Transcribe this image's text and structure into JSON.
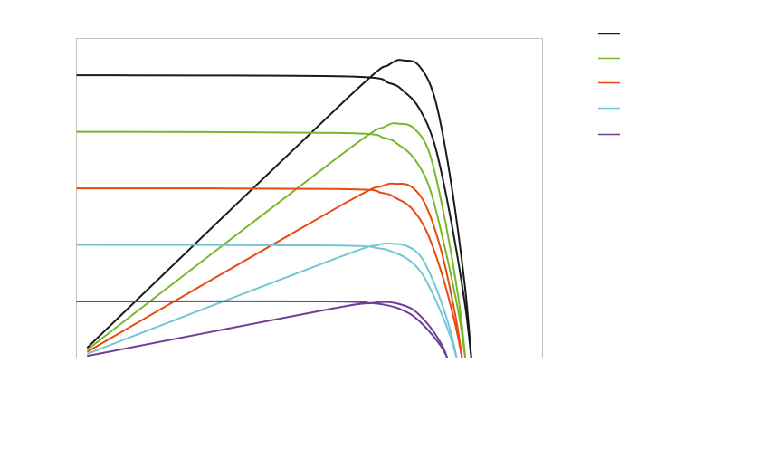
{
  "chart_data": {
    "type": "line",
    "title": "",
    "xlabel": "",
    "ylabel": "",
    "xlim": [
      0,
      0.7
    ],
    "ylim": [
      0,
      5.65
    ],
    "grid": false,
    "axis_tick_labels": false,
    "legend": {
      "placement": "right",
      "entries_text_visible": false
    },
    "series": [
      {
        "color": "#1a1a1a",
        "current": [
          [
            0,
            5.0
          ],
          [
            0.402,
            4.98
          ],
          [
            0.47,
            4.86
          ],
          [
            0.493,
            4.7
          ],
          [
            0.515,
            4.41
          ],
          [
            0.538,
            3.77
          ],
          [
            0.561,
            2.53
          ],
          [
            0.583,
            0.99
          ],
          [
            0.593,
            0
          ]
        ],
        "power": [
          [
            0.016,
            0.18
          ],
          [
            0.402,
            4.54
          ],
          [
            0.47,
            5.19
          ],
          [
            0.493,
            5.26
          ],
          [
            0.515,
            5.16
          ],
          [
            0.538,
            4.6
          ],
          [
            0.561,
            3.22
          ],
          [
            0.583,
            1.31
          ],
          [
            0.593,
            0
          ]
        ]
      },
      {
        "color": "#77b82a",
        "current": [
          [
            0,
            4.0
          ],
          [
            0.396,
            3.98
          ],
          [
            0.463,
            3.89
          ],
          [
            0.485,
            3.76
          ],
          [
            0.507,
            3.53
          ],
          [
            0.53,
            3.02
          ],
          [
            0.552,
            2.02
          ],
          [
            0.574,
            0.79
          ],
          [
            0.584,
            0
          ]
        ],
        "power": [
          [
            0.016,
            0.145
          ],
          [
            0.396,
            3.58
          ],
          [
            0.463,
            4.09
          ],
          [
            0.485,
            4.14
          ],
          [
            0.507,
            4.06
          ],
          [
            0.53,
            3.63
          ],
          [
            0.552,
            2.53
          ],
          [
            0.574,
            1.03
          ],
          [
            0.584,
            0
          ]
        ]
      },
      {
        "color": "#e8490f",
        "current": [
          [
            0,
            3.0
          ],
          [
            0.393,
            2.99
          ],
          [
            0.459,
            2.92
          ],
          [
            0.481,
            2.82
          ],
          [
            0.503,
            2.65
          ],
          [
            0.525,
            2.26
          ],
          [
            0.548,
            1.52
          ],
          [
            0.569,
            0.59
          ],
          [
            0.579,
            0
          ]
        ],
        "power": [
          [
            0.016,
            0.109
          ],
          [
            0.393,
            2.67
          ],
          [
            0.459,
            3.04
          ],
          [
            0.481,
            3.08
          ],
          [
            0.503,
            3.03
          ],
          [
            0.525,
            2.69
          ],
          [
            0.548,
            1.89
          ],
          [
            0.569,
            0.76
          ],
          [
            0.579,
            0
          ]
        ]
      },
      {
        "color": "#74c6d4",
        "current": [
          [
            0,
            2.0
          ],
          [
            0.387,
            1.99
          ],
          [
            0.453,
            1.94
          ],
          [
            0.474,
            1.88
          ],
          [
            0.496,
            1.76
          ],
          [
            0.518,
            1.51
          ],
          [
            0.54,
            1.01
          ],
          [
            0.561,
            0.4
          ],
          [
            0.571,
            0
          ]
        ],
        "power": [
          [
            0.016,
            0.073
          ],
          [
            0.387,
            1.75
          ],
          [
            0.453,
            2.0
          ],
          [
            0.474,
            2.02
          ],
          [
            0.496,
            1.98
          ],
          [
            0.518,
            1.78
          ],
          [
            0.54,
            1.24
          ],
          [
            0.561,
            0.51
          ],
          [
            0.571,
            0
          ]
        ]
      },
      {
        "color": "#6e3f96",
        "current": [
          [
            0,
            1.0
          ],
          [
            0.378,
            1.0
          ],
          [
            0.442,
            0.97
          ],
          [
            0.463,
            0.94
          ],
          [
            0.483,
            0.88
          ],
          [
            0.505,
            0.75
          ],
          [
            0.527,
            0.51
          ],
          [
            0.548,
            0.2
          ],
          [
            0.557,
            0
          ]
        ],
        "power": [
          [
            0.016,
            0.036
          ],
          [
            0.378,
            0.86
          ],
          [
            0.442,
            0.97
          ],
          [
            0.463,
            0.99
          ],
          [
            0.483,
            0.96
          ],
          [
            0.505,
            0.86
          ],
          [
            0.527,
            0.61
          ],
          [
            0.548,
            0.25
          ],
          [
            0.557,
            0
          ]
        ]
      }
    ]
  }
}
